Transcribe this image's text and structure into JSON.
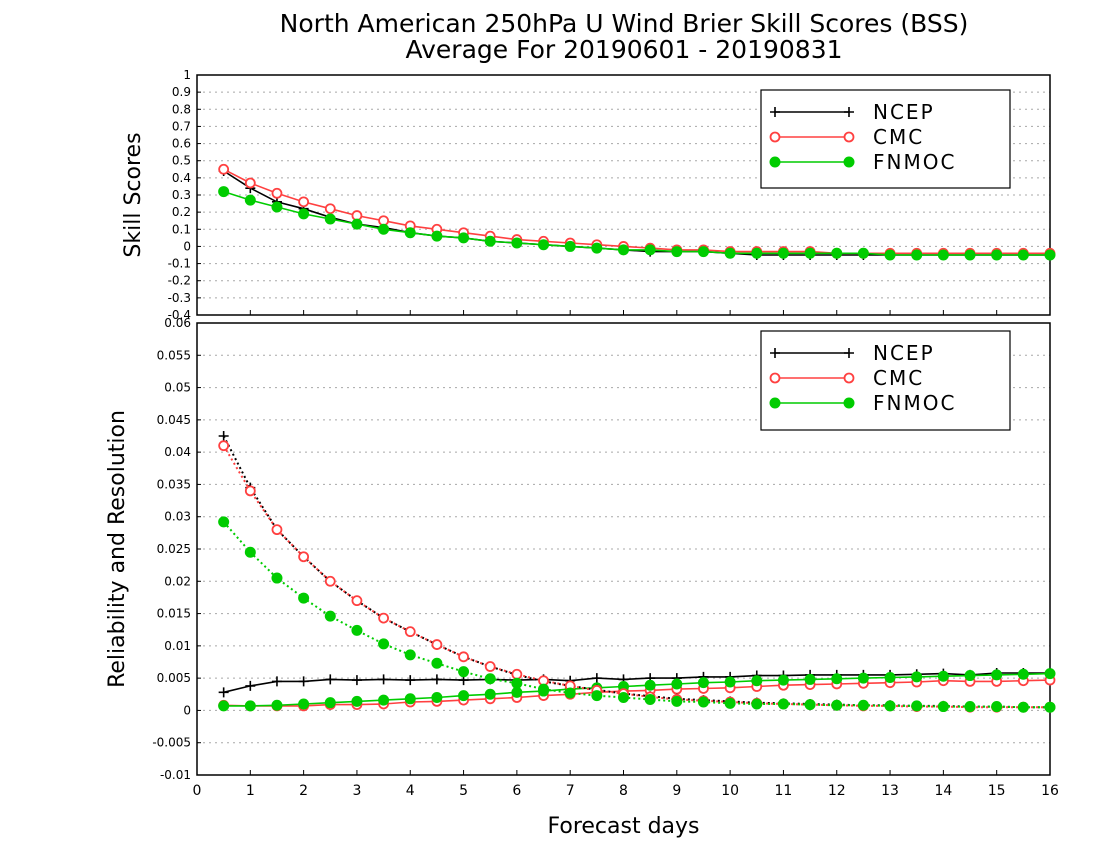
{
  "title": {
    "line1": "North American 250hPa U Wind Brier Skill Scores (BSS)",
    "line2": "Average For 20190601 - 20190831"
  },
  "chart_data": [
    {
      "type": "line",
      "ylabel": "Skill Scores",
      "ylim": [
        -0.4,
        1
      ],
      "yticks": [
        "1",
        "0.9",
        "0.8",
        "0.7",
        "0.6",
        "0.5",
        "0.4",
        "0.3",
        "0.2",
        "0.1",
        "0",
        "-0.1",
        "-0.2",
        "-0.3",
        "-0.4"
      ],
      "xlim": [
        0,
        16
      ],
      "grid": true,
      "legend": {
        "placement": "top-right",
        "entries": [
          "NCEP",
          "CMC",
          "FNMOC"
        ]
      },
      "x": [
        0.5,
        1,
        1.5,
        2,
        2.5,
        3,
        3.5,
        4,
        4.5,
        5,
        5.5,
        6,
        6.5,
        7,
        7.5,
        8,
        8.5,
        9,
        9.5,
        10,
        10.5,
        11,
        11.5,
        12,
        12.5,
        13,
        13.5,
        14,
        14.5,
        15,
        15.5,
        16
      ],
      "series": [
        {
          "name": "NCEP",
          "color": "#000000",
          "marker": "plus",
          "values": [
            0.44,
            0.34,
            0.26,
            0.22,
            0.17,
            0.13,
            0.11,
            0.08,
            0.06,
            0.05,
            0.03,
            0.02,
            0.01,
            0,
            -0.01,
            -0.02,
            -0.03,
            -0.03,
            -0.03,
            -0.04,
            -0.05,
            -0.05,
            -0.05,
            -0.05,
            -0.05,
            -0.05,
            -0.05,
            -0.05,
            -0.05,
            -0.05,
            -0.05,
            -0.05
          ]
        },
        {
          "name": "CMC",
          "color": "#ff4040",
          "marker": "open-circle",
          "values": [
            0.45,
            0.37,
            0.31,
            0.26,
            0.22,
            0.18,
            0.15,
            0.12,
            0.1,
            0.08,
            0.06,
            0.04,
            0.03,
            0.02,
            0.01,
            0,
            -0.01,
            -0.02,
            -0.02,
            -0.03,
            -0.03,
            -0.03,
            -0.03,
            -0.04,
            -0.04,
            -0.04,
            -0.04,
            -0.04,
            -0.04,
            -0.04,
            -0.04,
            -0.04
          ]
        },
        {
          "name": "FNMOC",
          "color": "#00cc00",
          "marker": "filled-circle",
          "values": [
            0.32,
            0.27,
            0.23,
            0.19,
            0.16,
            0.13,
            0.1,
            0.08,
            0.06,
            0.05,
            0.03,
            0.02,
            0.01,
            0,
            -0.01,
            -0.02,
            -0.02,
            -0.03,
            -0.03,
            -0.04,
            -0.04,
            -0.04,
            -0.04,
            -0.04,
            -0.04,
            -0.05,
            -0.05,
            -0.05,
            -0.05,
            -0.05,
            -0.05,
            -0.05
          ]
        }
      ]
    },
    {
      "type": "line",
      "xlabel": "Forecast days",
      "ylabel": "Reliability and Resolution",
      "ylim": [
        -0.01,
        0.06
      ],
      "yticks": [
        "0.06",
        "0.055",
        "0.05",
        "0.045",
        "0.04",
        "0.035",
        "0.03",
        "0.025",
        "0.02",
        "0.015",
        "0.01",
        "0.005",
        "0",
        "-0.005",
        "-0.01"
      ],
      "xlim": [
        0,
        16
      ],
      "xticks": [
        "0",
        "1",
        "2",
        "3",
        "4",
        "5",
        "6",
        "7",
        "8",
        "9",
        "10",
        "11",
        "12",
        "13",
        "14",
        "15",
        "16"
      ],
      "grid": true,
      "legend": {
        "placement": "top-right",
        "entries": [
          "NCEP",
          "CMC",
          "FNMOC"
        ]
      },
      "x": [
        0.5,
        1,
        1.5,
        2,
        2.5,
        3,
        3.5,
        4,
        4.5,
        5,
        5.5,
        6,
        6.5,
        7,
        7.5,
        8,
        8.5,
        9,
        9.5,
        10,
        10.5,
        11,
        11.5,
        12,
        12.5,
        13,
        13.5,
        14,
        14.5,
        15,
        15.5,
        16
      ],
      "series": [
        {
          "name": "NCEP",
          "kind": "reliability",
          "style": "solid",
          "color": "#000000",
          "marker": "plus",
          "values": [
            0.0028,
            0.0038,
            0.0045,
            0.0045,
            0.0048,
            0.0047,
            0.0048,
            0.0047,
            0.0048,
            0.0047,
            0.0048,
            0.0047,
            0.0048,
            0.0046,
            0.005,
            0.0048,
            0.005,
            0.005,
            0.0052,
            0.0052,
            0.0054,
            0.0054,
            0.0055,
            0.0055,
            0.0055,
            0.0055,
            0.0056,
            0.0057,
            0.0055,
            0.0058,
            0.0058,
            0.0058
          ]
        },
        {
          "name": "CMC",
          "kind": "reliability",
          "style": "solid",
          "color": "#ff4040",
          "marker": "open-circle",
          "values": [
            0.0008,
            0.0007,
            0.0007,
            0.0007,
            0.0009,
            0.0009,
            0.001,
            0.0013,
            0.0014,
            0.0016,
            0.0018,
            0.002,
            0.0023,
            0.0025,
            0.0028,
            0.003,
            0.0031,
            0.0033,
            0.0034,
            0.0035,
            0.0037,
            0.0039,
            0.004,
            0.0041,
            0.0042,
            0.0043,
            0.0044,
            0.0046,
            0.0045,
            0.0045,
            0.0046,
            0.0047
          ]
        },
        {
          "name": "FNMOC",
          "kind": "reliability",
          "style": "solid",
          "color": "#00cc00",
          "marker": "filled-circle",
          "values": [
            0.0007,
            0.0007,
            0.0008,
            0.001,
            0.0012,
            0.0014,
            0.0016,
            0.0018,
            0.002,
            0.0023,
            0.0025,
            0.0028,
            0.003,
            0.0033,
            0.0035,
            0.0037,
            0.0039,
            0.0041,
            0.0043,
            0.0044,
            0.0046,
            0.0047,
            0.0048,
            0.0049,
            0.005,
            0.0051,
            0.0052,
            0.0053,
            0.0054,
            0.0055,
            0.0056,
            0.0057
          ]
        },
        {
          "name": "NCEP",
          "kind": "resolution",
          "style": "dotted",
          "color": "#000000",
          "marker": "plus",
          "values": [
            0.0425,
            0.0345,
            0.028,
            0.0238,
            0.02,
            0.017,
            0.0143,
            0.0122,
            0.0102,
            0.0083,
            0.0068,
            0.0055,
            0.0045,
            0.0038,
            0.0032,
            0.0026,
            0.0022,
            0.0018,
            0.0016,
            0.0014,
            0.0012,
            0.0011,
            0.001,
            0.0009,
            0.0008,
            0.0008,
            0.0007,
            0.0007,
            0.0006,
            0.0006,
            0.0005,
            0.0005
          ]
        },
        {
          "name": "CMC",
          "kind": "resolution",
          "style": "dotted",
          "color": "#ff4040",
          "marker": "open-circle",
          "values": [
            0.041,
            0.034,
            0.028,
            0.0238,
            0.02,
            0.017,
            0.0143,
            0.0122,
            0.0102,
            0.0083,
            0.0068,
            0.0056,
            0.0046,
            0.0038,
            0.0031,
            0.0026,
            0.0021,
            0.0017,
            0.0015,
            0.0013,
            0.0011,
            0.001,
            0.0009,
            0.0008,
            0.0007,
            0.0007,
            0.0006,
            0.0006,
            0.0005,
            0.0005,
            0.0005,
            0.0005
          ]
        },
        {
          "name": "FNMOC",
          "kind": "resolution",
          "style": "dotted",
          "color": "#00cc00",
          "marker": "filled-circle",
          "values": [
            0.0292,
            0.0245,
            0.0205,
            0.0174,
            0.0146,
            0.0124,
            0.0103,
            0.0086,
            0.0073,
            0.006,
            0.0049,
            0.0042,
            0.0033,
            0.0027,
            0.0023,
            0.002,
            0.0017,
            0.0014,
            0.0013,
            0.0011,
            0.001,
            0.001,
            0.0009,
            0.0008,
            0.0008,
            0.0007,
            0.0007,
            0.0006,
            0.0006,
            0.0006,
            0.0005,
            0.0005
          ]
        }
      ]
    }
  ]
}
